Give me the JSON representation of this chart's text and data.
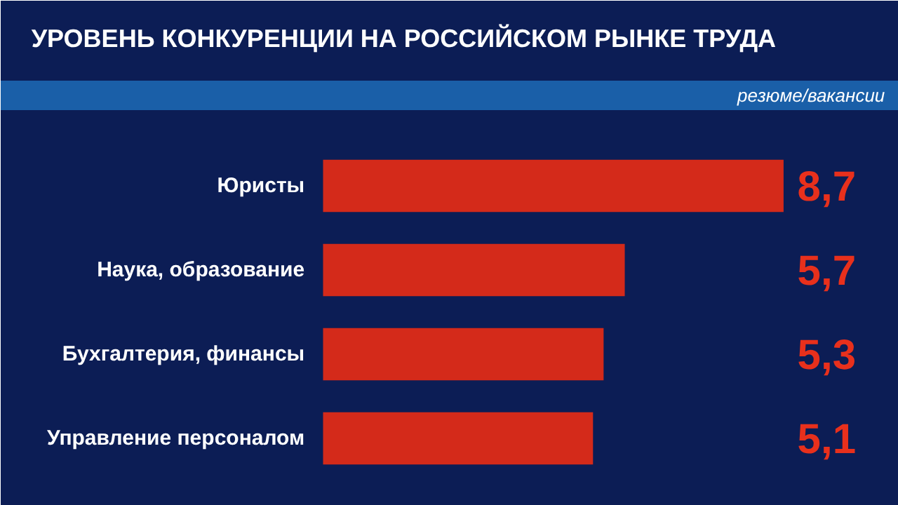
{
  "chart_data": {
    "type": "bar",
    "orientation": "horizontal",
    "title": "УРОВЕНЬ КОНКУРЕНЦИИ НА РОССИЙСКОМ РЫНКЕ ТРУДА",
    "subtitle": "резюме/вакансии",
    "categories": [
      "Юристы",
      "Наука, образование",
      "Бухгалтерия, финансы",
      "Управление персоналом"
    ],
    "values": [
      8.7,
      5.7,
      5.3,
      5.1
    ],
    "color": "#d42a1a",
    "value_labels": [
      "8,7",
      "5,7",
      "5,3",
      "5,1"
    ]
  }
}
